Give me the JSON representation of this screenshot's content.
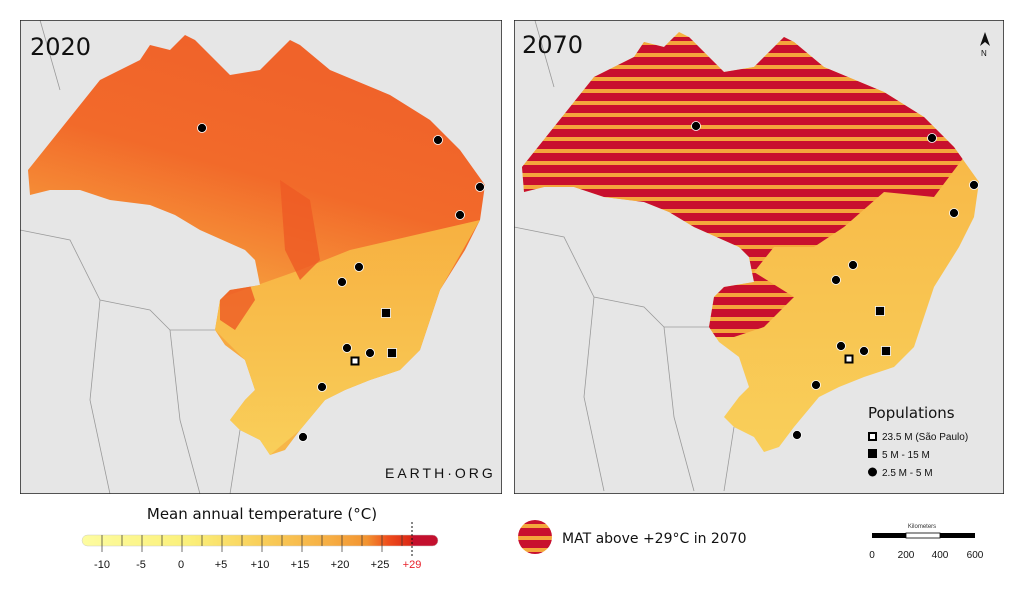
{
  "panels": [
    {
      "year_label": "2020"
    },
    {
      "year_label": "2070"
    }
  ],
  "watermark": "EARTH·ORG",
  "north_arrow": {
    "label": "N",
    "icon": "north-arrow-icon"
  },
  "populations_legend": {
    "title": "Populations",
    "items": [
      {
        "symbol": "hollow-square",
        "label": "23.5 M  (São Paulo)"
      },
      {
        "symbol": "square",
        "label": "5 M - 15 M"
      },
      {
        "symbol": "circle",
        "label": "2.5 M - 5 M"
      }
    ]
  },
  "temperature_legend": {
    "title": "Mean annual temperature (°C)",
    "ticks": [
      "-10",
      "-5",
      "0",
      "+5",
      "+10",
      "+15",
      "+20",
      "+25",
      "+29"
    ],
    "threshold_color": "#e8202a",
    "colors": [
      "#fdfb9c",
      "#fbe277",
      "#f8c050",
      "#f59a38",
      "#ef5a1e",
      "#d9241a",
      "#c3102e"
    ]
  },
  "hatch_legend": {
    "label": "MAT above +29°C in 2070",
    "color": "#c8102e"
  },
  "scale_bar": {
    "title": "Kilometers",
    "ticks": [
      "0",
      "200",
      "400",
      "600"
    ]
  }
}
